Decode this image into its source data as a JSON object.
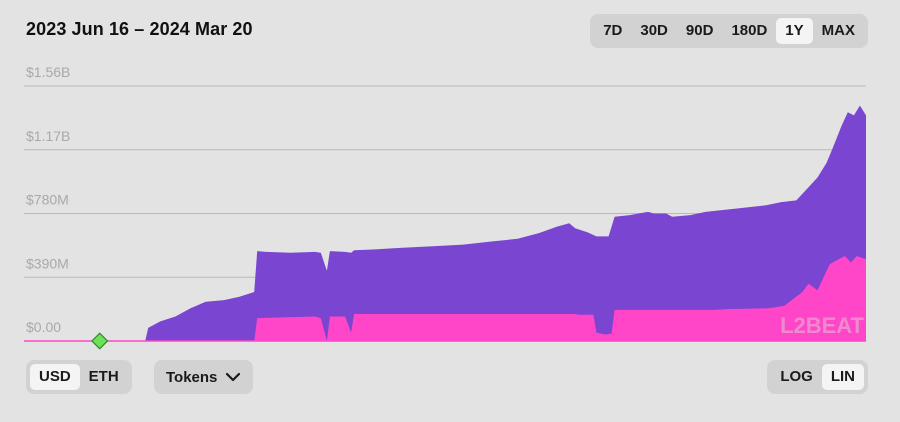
{
  "header": {
    "date_range": "2023 Jun 16 – 2024 Mar 20"
  },
  "range_options": [
    {
      "label": "7D",
      "active": false
    },
    {
      "label": "30D",
      "active": false
    },
    {
      "label": "90D",
      "active": false
    },
    {
      "label": "180D",
      "active": false
    },
    {
      "label": "1Y",
      "active": true
    },
    {
      "label": "MAX",
      "active": false
    }
  ],
  "unit_options": [
    {
      "label": "USD",
      "active": true
    },
    {
      "label": "ETH",
      "active": false
    }
  ],
  "tokens_button": {
    "label": "Tokens",
    "icon": "chevron-down-icon"
  },
  "scale_options": [
    {
      "label": "LOG",
      "active": false
    },
    {
      "label": "LIN",
      "active": true
    }
  ],
  "watermark": "L2BEAT",
  "colors": {
    "series_total": "#7a45d0",
    "series_pink": "#ff46c8",
    "marker": "#6fe05a",
    "grid": "#b9b9b9",
    "background": "#e3e3e3"
  },
  "chart_data": {
    "type": "area",
    "title": "2023 Jun 16 – 2024 Mar 20",
    "xlabel": "",
    "ylabel": "",
    "y_ticks": [
      "$0.00",
      "$390M",
      "$780M",
      "$1.17B",
      "$1.56B"
    ],
    "ylim": [
      0,
      1560
    ],
    "y_unit": "$M",
    "xlim": [
      0,
      278
    ],
    "x_unit": "days since 2023 Jun 16",
    "grid": true,
    "legend": "none",
    "stacked": true,
    "marker": {
      "x": 25,
      "y": 0
    },
    "series": [
      {
        "name": "",
        "color": "#ff46c8",
        "points": [
          [
            0,
            0
          ],
          [
            76,
            0
          ],
          [
            77,
            140
          ],
          [
            96,
            150
          ],
          [
            98,
            140
          ],
          [
            100,
            0
          ],
          [
            101,
            150
          ],
          [
            106,
            150
          ],
          [
            108,
            50
          ],
          [
            109,
            165
          ],
          [
            182,
            165
          ],
          [
            183,
            160
          ],
          [
            188,
            160
          ],
          [
            189,
            50
          ],
          [
            192,
            40
          ],
          [
            194,
            45
          ],
          [
            195,
            190
          ],
          [
            228,
            190
          ],
          [
            232,
            195
          ],
          [
            246,
            200
          ],
          [
            251,
            215
          ],
          [
            257,
            300
          ],
          [
            259,
            350
          ],
          [
            262,
            310
          ],
          [
            266,
            470
          ],
          [
            269,
            500
          ],
          [
            271,
            520
          ],
          [
            273,
            480
          ],
          [
            275,
            520
          ],
          [
            278,
            500
          ]
        ]
      },
      {
        "name": "",
        "color": "#7a45d0",
        "points": [
          [
            0,
            0
          ],
          [
            40,
            0
          ],
          [
            41,
            80
          ],
          [
            45,
            120
          ],
          [
            50,
            150
          ],
          [
            55,
            200
          ],
          [
            60,
            240
          ],
          [
            66,
            250
          ],
          [
            71,
            270
          ],
          [
            76,
            300
          ],
          [
            77,
            550
          ],
          [
            80,
            545
          ],
          [
            88,
            540
          ],
          [
            96,
            545
          ],
          [
            98,
            540
          ],
          [
            100,
            430
          ],
          [
            101,
            550
          ],
          [
            106,
            545
          ],
          [
            108,
            540
          ],
          [
            109,
            555
          ],
          [
            115,
            560
          ],
          [
            125,
            570
          ],
          [
            135,
            580
          ],
          [
            145,
            590
          ],
          [
            155,
            610
          ],
          [
            163,
            625
          ],
          [
            170,
            660
          ],
          [
            176,
            700
          ],
          [
            180,
            720
          ],
          [
            182,
            690
          ],
          [
            186,
            665
          ],
          [
            189,
            640
          ],
          [
            193,
            640
          ],
          [
            195,
            760
          ],
          [
            200,
            770
          ],
          [
            206,
            790
          ],
          [
            208,
            780
          ],
          [
            212,
            780
          ],
          [
            214,
            760
          ],
          [
            220,
            770
          ],
          [
            225,
            790
          ],
          [
            235,
            810
          ],
          [
            245,
            830
          ],
          [
            250,
            850
          ],
          [
            255,
            860
          ],
          [
            258,
            920
          ],
          [
            262,
            1000
          ],
          [
            265,
            1090
          ],
          [
            267,
            1180
          ],
          [
            270,
            1320
          ],
          [
            272,
            1400
          ],
          [
            274,
            1380
          ],
          [
            276,
            1440
          ],
          [
            277,
            1410
          ],
          [
            278,
            1380
          ]
        ]
      }
    ]
  }
}
